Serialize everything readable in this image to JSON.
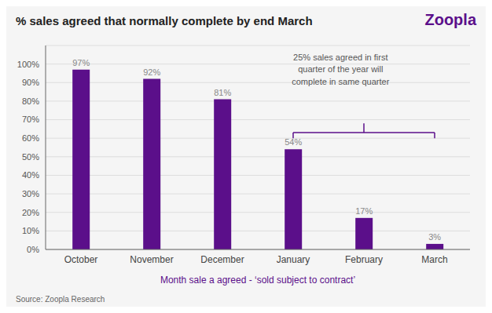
{
  "chart_data": {
    "type": "bar",
    "title": "% sales agreed that normally complete by end March",
    "brand": "Zoopla",
    "categories": [
      "October",
      "November",
      "December",
      "January",
      "February",
      "March"
    ],
    "values": [
      97,
      92,
      81,
      54,
      17,
      3
    ],
    "value_labels": [
      "97%",
      "92%",
      "81%",
      "54%",
      "17%",
      "3%"
    ],
    "data_labels": true,
    "color": "#5b0f8a",
    "xlabel": "Month sale a agreed - ‘sold subject to contract’",
    "ylim": [
      0,
      110
    ],
    "yticks": [
      {
        "value": 0,
        "label": "0%"
      },
      {
        "value": 10,
        "label": "10%"
      },
      {
        "value": 20,
        "label": "20%"
      },
      {
        "value": 30,
        "label": "30%"
      },
      {
        "value": 40,
        "label": "40%"
      },
      {
        "value": 50,
        "label": "50%"
      },
      {
        "value": 60,
        "label": "60%"
      },
      {
        "value": 70,
        "label": "70%"
      },
      {
        "value": 80,
        "label": "80%"
      },
      {
        "value": 90,
        "label": "90%"
      },
      {
        "value": 100,
        "label": "100%"
      }
    ],
    "grid": true,
    "annotation": "25% sales agreed in first\nquarter of the year will\ncomplete in same quarter",
    "source": "Source: Zoopla Research"
  }
}
